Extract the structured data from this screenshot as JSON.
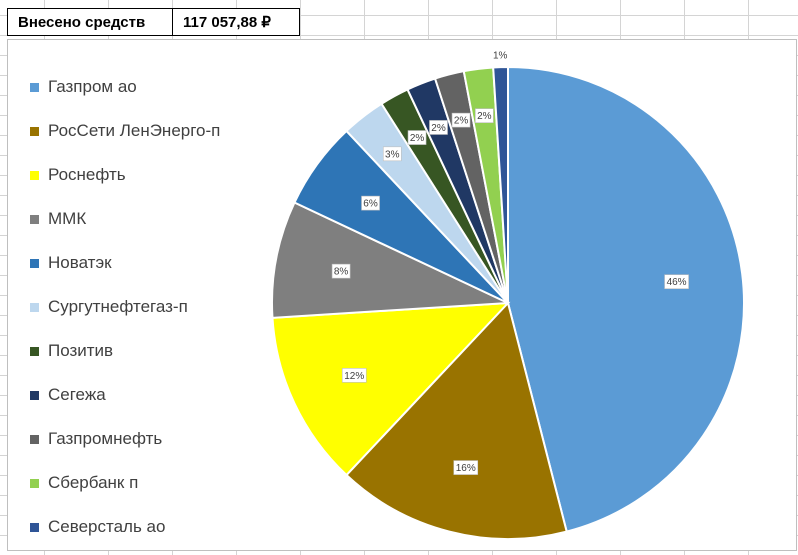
{
  "summary": {
    "label": "Внесено средств",
    "value": "117 057,88 ₽"
  },
  "chart_data": {
    "type": "pie",
    "title": "",
    "legend_position": "left",
    "slices": [
      {
        "name": "Газпром ао",
        "value": 46,
        "label": "46%",
        "color": "#5b9bd5"
      },
      {
        "name": "РосСети ЛенЭнерго-п",
        "value": 16,
        "label": "16%",
        "color": "#997300"
      },
      {
        "name": "Роснефть",
        "value": 12,
        "label": "12%",
        "color": "#ffff00"
      },
      {
        "name": "ММК",
        "value": 8,
        "label": "8%",
        "color": "#7f7f7f"
      },
      {
        "name": "Новатэк",
        "value": 6,
        "label": "6%",
        "color": "#2e75b6"
      },
      {
        "name": "Сургутнефтегаз-п",
        "value": 3,
        "label": "3%",
        "color": "#bdd7ee"
      },
      {
        "name": "Позитив",
        "value": 2,
        "label": "2%",
        "color": "#375623"
      },
      {
        "name": "Сегежа",
        "value": 2,
        "label": "2%",
        "color": "#203864"
      },
      {
        "name": "Газпромнефть",
        "value": 2,
        "label": "2%",
        "color": "#636363"
      },
      {
        "name": "Сбербанк п",
        "value": 2,
        "label": "2%",
        "color": "#92d050"
      },
      {
        "name": "Северсталь ао",
        "value": 1,
        "label": "1%",
        "color": "#2f5597"
      }
    ]
  }
}
